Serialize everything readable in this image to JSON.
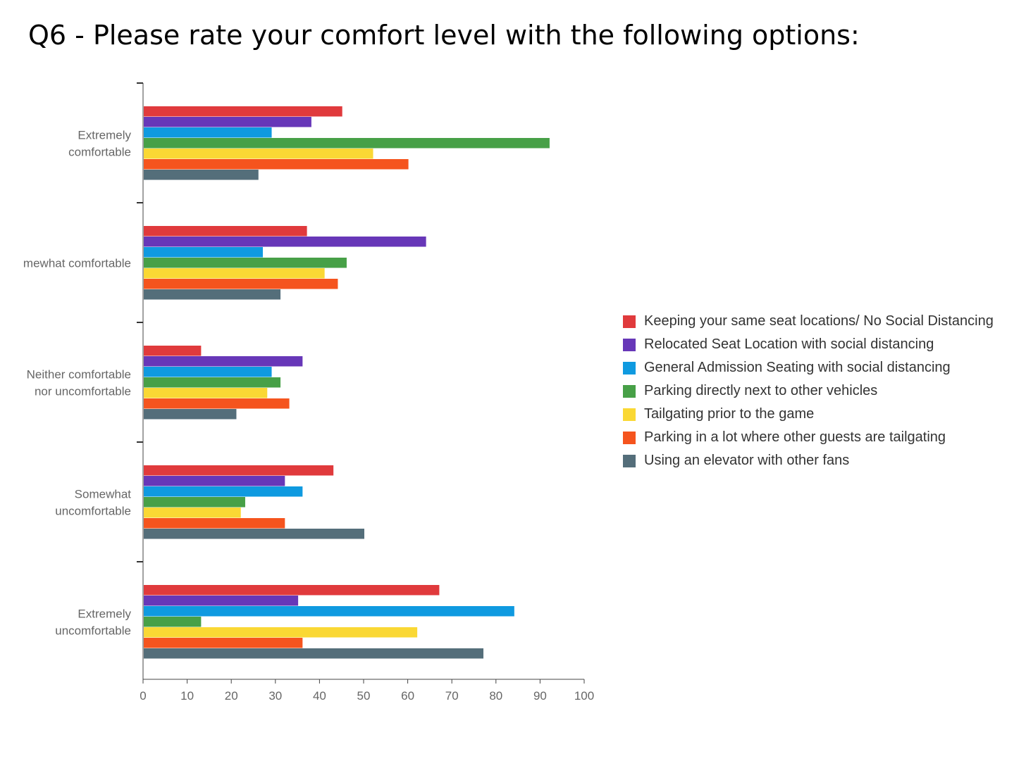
{
  "title": "Q6 - Please rate your comfort level with the following options:",
  "chart_data": {
    "type": "bar",
    "orientation": "horizontal",
    "categories": [
      [
        "Extremely",
        "comfortable"
      ],
      [
        "mewhat comfortable"
      ],
      [
        "Neither comfortable",
        "nor uncomfortable"
      ],
      [
        "Somewhat",
        "uncomfortable"
      ],
      [
        "Extremely",
        "uncomfortable"
      ]
    ],
    "xlim": [
      0,
      100
    ],
    "xticks": [
      0,
      10,
      20,
      30,
      40,
      50,
      60,
      70,
      80,
      90,
      100
    ],
    "grid": false,
    "legend_position": "right",
    "series": [
      {
        "name": "Keeping your same seat locations/ No Social Distancing",
        "color": "#e03a3c",
        "values": [
          45,
          37,
          13,
          43,
          67
        ]
      },
      {
        "name": "Relocated Seat Location with social distancing",
        "color": "#6737b8",
        "values": [
          38,
          64,
          36,
          32,
          35
        ]
      },
      {
        "name": "General Admission Seating with social distancing",
        "color": "#0f9ae0",
        "values": [
          29,
          27,
          29,
          36,
          84
        ]
      },
      {
        "name": "Parking directly next to other vehicles",
        "color": "#47a047",
        "values": [
          92,
          46,
          31,
          23,
          13
        ]
      },
      {
        "name": "Tailgating prior to the game",
        "color": "#fad834",
        "values": [
          52,
          41,
          28,
          22,
          62
        ]
      },
      {
        "name": "Parking in a lot where other guests are tailgating",
        "color": "#f5541e",
        "values": [
          60,
          44,
          33,
          32,
          36
        ]
      },
      {
        "name": "Using an elevator with other fans",
        "color": "#546e7a",
        "values": [
          26,
          31,
          21,
          50,
          77
        ]
      }
    ]
  }
}
